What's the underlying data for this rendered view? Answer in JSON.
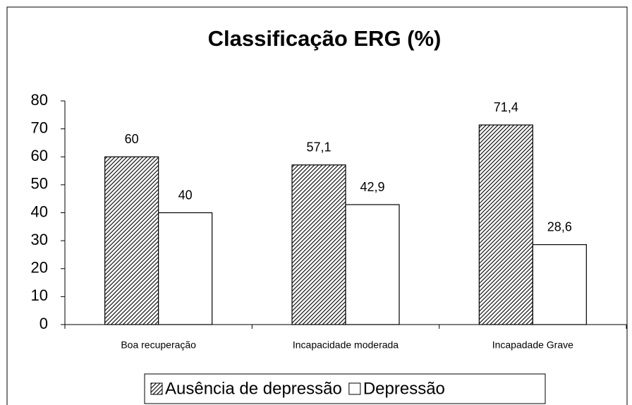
{
  "chart_data": {
    "type": "bar",
    "title": "Classificação ERG (%)",
    "categories": [
      "Boa recuperação",
      "Incapacidade moderada",
      "Incapadade Grave"
    ],
    "series": [
      {
        "name": "Ausência de depressão",
        "color": "#000000",
        "pattern": "hatch",
        "values": [
          60,
          57.1,
          71.4
        ],
        "value_labels": [
          "60",
          "57,1",
          "71,4"
        ]
      },
      {
        "name": "Depressão",
        "color": "#ffffff",
        "values": [
          40,
          42.9,
          28.6
        ],
        "value_labels": [
          "40",
          "42,9",
          "28,6"
        ]
      }
    ],
    "ylim": [
      0,
      80
    ],
    "yticks": [
      0,
      10,
      20,
      30,
      40,
      50,
      60,
      70,
      80
    ],
    "grid": false,
    "legend": "bottom"
  }
}
